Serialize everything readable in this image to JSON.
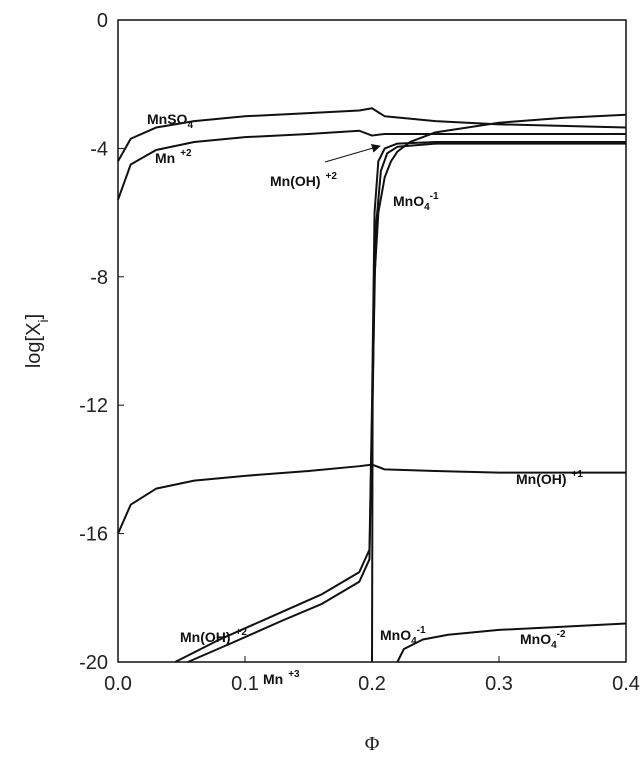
{
  "chart_data": {
    "type": "line",
    "xlim": [
      0,
      0.4
    ],
    "ylim": [
      -20,
      0
    ],
    "xticks": [
      {
        "value": 0,
        "label": "0.0"
      },
      0.1,
      0.2,
      0.3,
      0.4
    ],
    "yticks": [
      0,
      -4,
      -8,
      -12,
      -16,
      -20
    ],
    "xlabel": "Φ",
    "ylabel": {
      "text": "log[X",
      "sub": "i",
      "after": "]"
    },
    "series": [
      {
        "color": "#111111",
        "x": [
          0,
          0.01,
          0.03,
          0.06,
          0.1,
          0.15,
          0.19,
          0.2,
          0.21,
          0.25,
          0.3,
          0.35,
          0.4
        ],
        "values": [
          -4.4,
          -3.7,
          -3.35,
          -3.15,
          -3.0,
          -2.9,
          -2.82,
          -2.75,
          -3.0,
          -3.15,
          -3.25,
          -3.3,
          -3.35
        ]
      },
      {
        "color": "#111111",
        "x": [
          0,
          0.01,
          0.03,
          0.06,
          0.1,
          0.15,
          0.19,
          0.2,
          0.21,
          0.25,
          0.3,
          0.35,
          0.4
        ],
        "values": [
          -5.6,
          -4.5,
          -4.05,
          -3.8,
          -3.65,
          -3.55,
          -3.45,
          -3.6,
          -3.55,
          -3.55,
          -3.55,
          -3.55,
          -3.55
        ]
      },
      {
        "color": "#111111",
        "x": [
          0,
          0.01,
          0.03,
          0.06,
          0.1,
          0.15,
          0.19,
          0.2,
          0.21,
          0.25,
          0.3,
          0.35,
          0.4
        ],
        "values": [
          -16,
          -15.1,
          -14.6,
          -14.35,
          -14.2,
          -14.05,
          -13.9,
          -13.85,
          -14.0,
          -14.05,
          -14.1,
          -14.1,
          -14.1
        ]
      },
      {
        "color": "#111111",
        "x": [
          0.045,
          0.08,
          0.12,
          0.16,
          0.19,
          0.198,
          0.2,
          0.202,
          0.205,
          0.21,
          0.22,
          0.25,
          0.3,
          0.4
        ],
        "values": [
          -20,
          -19.3,
          -18.6,
          -17.9,
          -17.2,
          -16.5,
          -12,
          -6,
          -4.4,
          -4.0,
          -3.85,
          -3.8,
          -3.8,
          -3.8
        ]
      },
      {
        "color": "#111111",
        "x": [
          0.055,
          0.09,
          0.13,
          0.16,
          0.19,
          0.198,
          0.2,
          0.203,
          0.207,
          0.212,
          0.22,
          0.25,
          0.3,
          0.4
        ],
        "values": [
          -20,
          -19.4,
          -18.7,
          -18.2,
          -17.5,
          -16.8,
          -12.5,
          -6.5,
          -4.7,
          -4.15,
          -3.95,
          -3.85,
          -3.85,
          -3.85
        ]
      },
      {
        "color": "#111111",
        "x": [
          0.2,
          0.2005,
          0.202,
          0.205,
          0.21,
          0.215,
          0.22,
          0.23,
          0.25,
          0.3,
          0.35,
          0.4
        ],
        "values": [
          -20,
          -12,
          -8,
          -6,
          -4.9,
          -4.4,
          -4.1,
          -3.8,
          -3.5,
          -3.2,
          -3.05,
          -2.95
        ]
      },
      {
        "color": "#111111",
        "x": [
          0.22,
          0.225,
          0.24,
          0.26,
          0.3,
          0.35,
          0.4
        ],
        "values": [
          -20,
          -19.6,
          -19.3,
          -19.15,
          -19.0,
          -18.9,
          -18.8
        ]
      }
    ],
    "annotations": [
      {
        "text": "MnSO",
        "sub": "4"
      },
      {
        "text": "Mn",
        "sup": "+2"
      },
      {
        "text": "Mn(OH)",
        "sup": "+2"
      },
      {
        "text": "MnO",
        "sub": "4",
        "sup": "-1"
      },
      {
        "text": "Mn(OH)",
        "sup": "+1"
      },
      {
        "text": "Mn(OH)",
        "sup": "+2"
      },
      {
        "text": "Mn",
        "sup": "+3"
      },
      {
        "text": "MnO",
        "sub": "4",
        "sup": "-1"
      },
      {
        "text": "MnO",
        "sub": "4",
        "sup": "-2"
      }
    ]
  }
}
